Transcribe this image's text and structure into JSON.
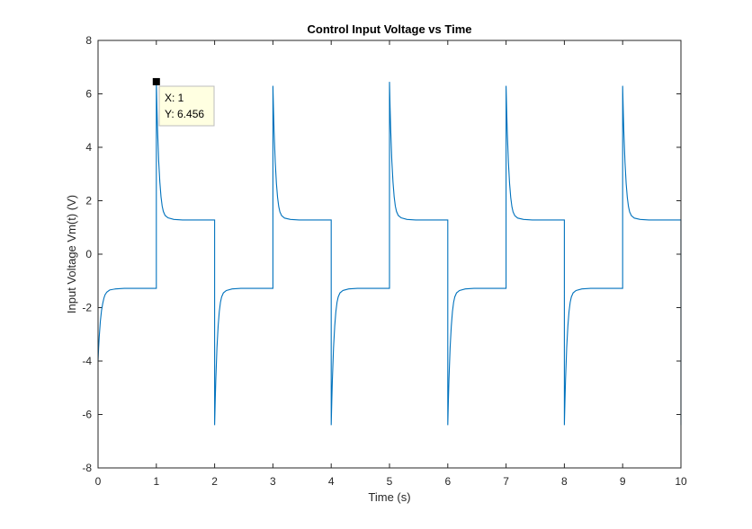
{
  "chart_data": {
    "type": "line",
    "title": "Control Input Voltage vs Time",
    "xlabel": "Time (s)",
    "ylabel": "Input Voltage Vm(t) (V)",
    "xlim": [
      0,
      10
    ],
    "ylim": [
      -8,
      8
    ],
    "xticks": [
      0,
      1,
      2,
      3,
      4,
      5,
      6,
      7,
      8,
      9,
      10
    ],
    "yticks": [
      -8,
      -6,
      -4,
      -2,
      0,
      2,
      4,
      6,
      8
    ],
    "grid": false,
    "series": [
      {
        "color": "#0072BD",
        "x": [
          0,
          0.01,
          0.02,
          0.04,
          0.06,
          0.08,
          0.1,
          0.12,
          0.15,
          0.2,
          0.3,
          0.45,
          0.6,
          1.0,
          1.0,
          1.01,
          1.02,
          1.04,
          1.06,
          1.08,
          1.1,
          1.12,
          1.15,
          1.2,
          1.3,
          1.45,
          1.6,
          2.0,
          2.0,
          2.01,
          2.02,
          2.04,
          2.06,
          2.08,
          2.1,
          2.12,
          2.15,
          2.2,
          2.3,
          2.45,
          2.6,
          3.0,
          3.0,
          3.01,
          3.02,
          3.04,
          3.06,
          3.08,
          3.1,
          3.12,
          3.15,
          3.2,
          3.3,
          3.45,
          3.6,
          4.0,
          4.0,
          4.01,
          4.02,
          4.04,
          4.06,
          4.08,
          4.1,
          4.12,
          4.15,
          4.2,
          4.3,
          4.45,
          4.6,
          5.0,
          5.0,
          5.01,
          5.02,
          5.04,
          5.06,
          5.08,
          5.1,
          5.12,
          5.15,
          5.2,
          5.3,
          5.45,
          5.6,
          6.0,
          6.0,
          6.01,
          6.02,
          6.04,
          6.06,
          6.08,
          6.1,
          6.12,
          6.15,
          6.2,
          6.3,
          6.45,
          6.6,
          7.0,
          7.0,
          7.01,
          7.02,
          7.04,
          7.06,
          7.08,
          7.1,
          7.12,
          7.15,
          7.2,
          7.3,
          7.45,
          7.6,
          8.0,
          8.0,
          8.01,
          8.02,
          8.04,
          8.06,
          8.08,
          8.1,
          8.12,
          8.15,
          8.2,
          8.3,
          8.45,
          8.6,
          9.0,
          9.0,
          9.01,
          9.02,
          9.04,
          9.06,
          9.08,
          9.1,
          9.12,
          9.15,
          9.2,
          9.3,
          9.45,
          9.6,
          10.0,
          10.0
        ],
        "y": [
          -4.0,
          -3.5,
          -3.1,
          -2.5,
          -2.1,
          -1.85,
          -1.65,
          -1.52,
          -1.42,
          -1.34,
          -1.3,
          -1.28,
          -1.28,
          -1.28,
          6.456,
          5.5,
          4.7,
          3.5,
          2.7,
          2.15,
          1.8,
          1.6,
          1.45,
          1.36,
          1.3,
          1.28,
          1.28,
          1.28,
          -6.4,
          -5.5,
          -4.7,
          -3.5,
          -2.7,
          -2.15,
          -1.8,
          -1.6,
          -1.45,
          -1.36,
          -1.3,
          -1.28,
          -1.28,
          -1.28,
          6.3,
          5.4,
          4.6,
          3.45,
          2.65,
          2.12,
          1.78,
          1.58,
          1.44,
          1.35,
          1.3,
          1.28,
          1.28,
          1.28,
          -6.4,
          -5.5,
          -4.7,
          -3.5,
          -2.7,
          -2.15,
          -1.8,
          -1.6,
          -1.45,
          -1.36,
          -1.3,
          -1.28,
          -1.28,
          -1.28,
          6.45,
          5.5,
          4.7,
          3.5,
          2.7,
          2.15,
          1.8,
          1.6,
          1.45,
          1.36,
          1.3,
          1.28,
          1.28,
          1.28,
          -6.4,
          -5.5,
          -4.7,
          -3.5,
          -2.7,
          -2.15,
          -1.8,
          -1.6,
          -1.45,
          -1.36,
          -1.3,
          -1.28,
          -1.28,
          -1.28,
          6.3,
          5.4,
          4.6,
          3.45,
          2.65,
          2.12,
          1.78,
          1.58,
          1.44,
          1.35,
          1.3,
          1.28,
          1.28,
          1.28,
          -6.4,
          -5.5,
          -4.7,
          -3.5,
          -2.7,
          -2.15,
          -1.8,
          -1.6,
          -1.45,
          -1.36,
          -1.3,
          -1.28,
          -1.28,
          -1.28,
          6.3,
          5.4,
          4.6,
          3.45,
          2.65,
          2.12,
          1.78,
          1.58,
          1.44,
          1.35,
          1.3,
          1.28,
          1.28,
          1.28,
          -6.4
        ]
      }
    ],
    "datatip": {
      "x": 1,
      "y": 6.456,
      "x_text": "X: 1",
      "y_text": "Y: 6.456"
    }
  }
}
